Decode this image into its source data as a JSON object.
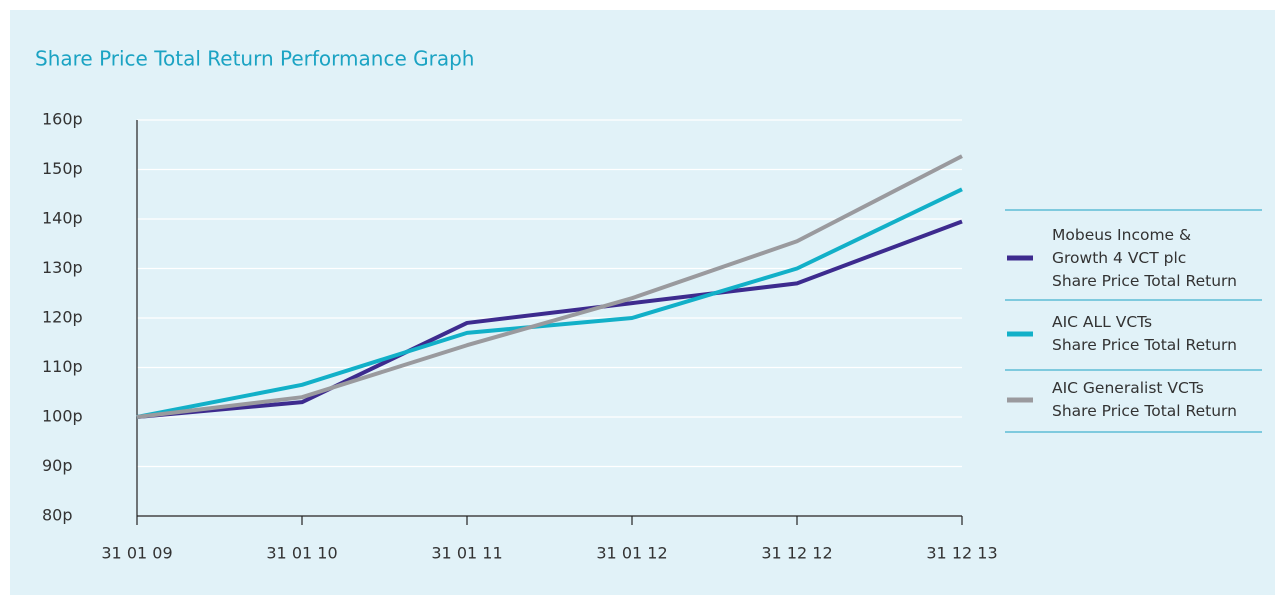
{
  "chart_data": {
    "type": "line",
    "title": "Share Price Total Return Performance Graph",
    "categories": [
      "31 01 09",
      "31 01 10",
      "31 01 11",
      "31 01 12",
      "31 12 12",
      "31 12 13"
    ],
    "series": [
      {
        "name": "Mobeus Income &\nGrowth 4 VCT plc\nShare Price Total Return",
        "color": "#3d2b8e",
        "values": [
          100,
          103,
          119,
          123,
          127,
          139.5
        ]
      },
      {
        "name": "AIC ALL VCTs\nShare Price Total Return",
        "color": "#12b0c8",
        "values": [
          100,
          106.5,
          117,
          120,
          130,
          146
        ]
      },
      {
        "name": "AIC Generalist VCTs\nShare Price Total Return",
        "color": "#9a9a9e",
        "values": [
          100,
          104,
          114.5,
          124,
          135.5,
          152.7
        ]
      }
    ],
    "ylim": [
      80,
      160
    ],
    "yticks": [
      {
        "value": 80,
        "label": "80p"
      },
      {
        "value": 90,
        "label": "90p"
      },
      {
        "value": 100,
        "label": "100p"
      },
      {
        "value": 110,
        "label": "110p"
      },
      {
        "value": 120,
        "label": "120p"
      },
      {
        "value": 130,
        "label": "130p"
      },
      {
        "value": 140,
        "label": "140p"
      },
      {
        "value": 150,
        "label": "150p"
      },
      {
        "value": 160,
        "label": "160p"
      }
    ],
    "grid": true,
    "legend": "right"
  }
}
